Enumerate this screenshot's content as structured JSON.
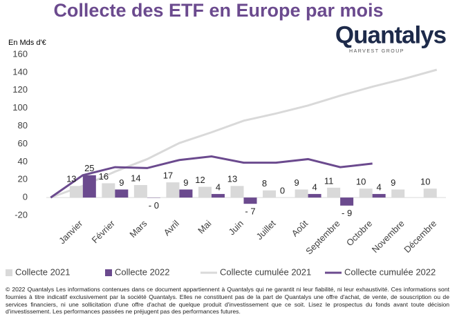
{
  "chart_data": {
    "type": "bar",
    "title": "Collecte des ETF en Europe par mois",
    "y_label": "En Mds d'€",
    "categories": [
      null,
      "Janvier",
      "Février",
      "Mars",
      "Avril",
      "Mai",
      "Juin",
      "Juillet",
      "Août",
      "Septembre",
      "Octobre",
      "Novembre",
      "Décembre"
    ],
    "series": [
      {
        "name": "Collecte 2021",
        "type": "bar",
        "color": "#d9d9d9",
        "values": [
          null,
          13,
          16,
          14,
          17,
          12,
          13,
          8,
          9,
          11,
          10,
          9,
          10
        ]
      },
      {
        "name": "Collecte 2022",
        "type": "bar",
        "color": "#6b4a8e",
        "values": [
          null,
          25,
          9,
          -0.3,
          9,
          4,
          -7,
          0,
          4,
          -9,
          4,
          null,
          null
        ],
        "value_labels": [
          null,
          "25",
          "9",
          "- 0",
          "9",
          "4",
          "- 7",
          "0",
          "4",
          "- 9",
          "4",
          null,
          null
        ]
      },
      {
        "name": "Collecte cumulée 2021",
        "type": "line",
        "color": "#d9d9d9",
        "values": [
          0,
          13,
          29,
          43,
          61,
          73,
          86,
          94,
          103,
          114,
          124,
          133,
          143
        ]
      },
      {
        "name": "Collecte cumulée 2022",
        "type": "line",
        "color": "#6b4a8e",
        "values": [
          0,
          25,
          34,
          33,
          42,
          46,
          39,
          39,
          43,
          34,
          38,
          null,
          null
        ]
      }
    ],
    "ylim": [
      -20,
      160
    ],
    "yticks": [
      -20,
      0,
      20,
      40,
      60,
      80,
      100,
      120,
      140,
      160
    ],
    "grid": false,
    "legend": "bottom"
  },
  "logo": {
    "name": "Quantalys",
    "tagline": "HARVEST GROUP"
  },
  "footer": "© 2022 Quantalys Les informations contenues dans ce document appartiennent à Quantalys qui ne garantit ni leur fiabilité, ni leur exhaustivité. Ces informations sont fournies à titre indicatif exclusivement par la société Quantalys. Elles ne constituent pas de la part de Quantalys une offre d'achat, de vente, de souscription ou de services financiers, ni une sollicitation d'une offre d'achat de quelque produit d'investissement que ce soit. Lisez le prospectus du fonds avant toute décision d'investissement. Les performances passées ne préjugent pas des performances futures."
}
